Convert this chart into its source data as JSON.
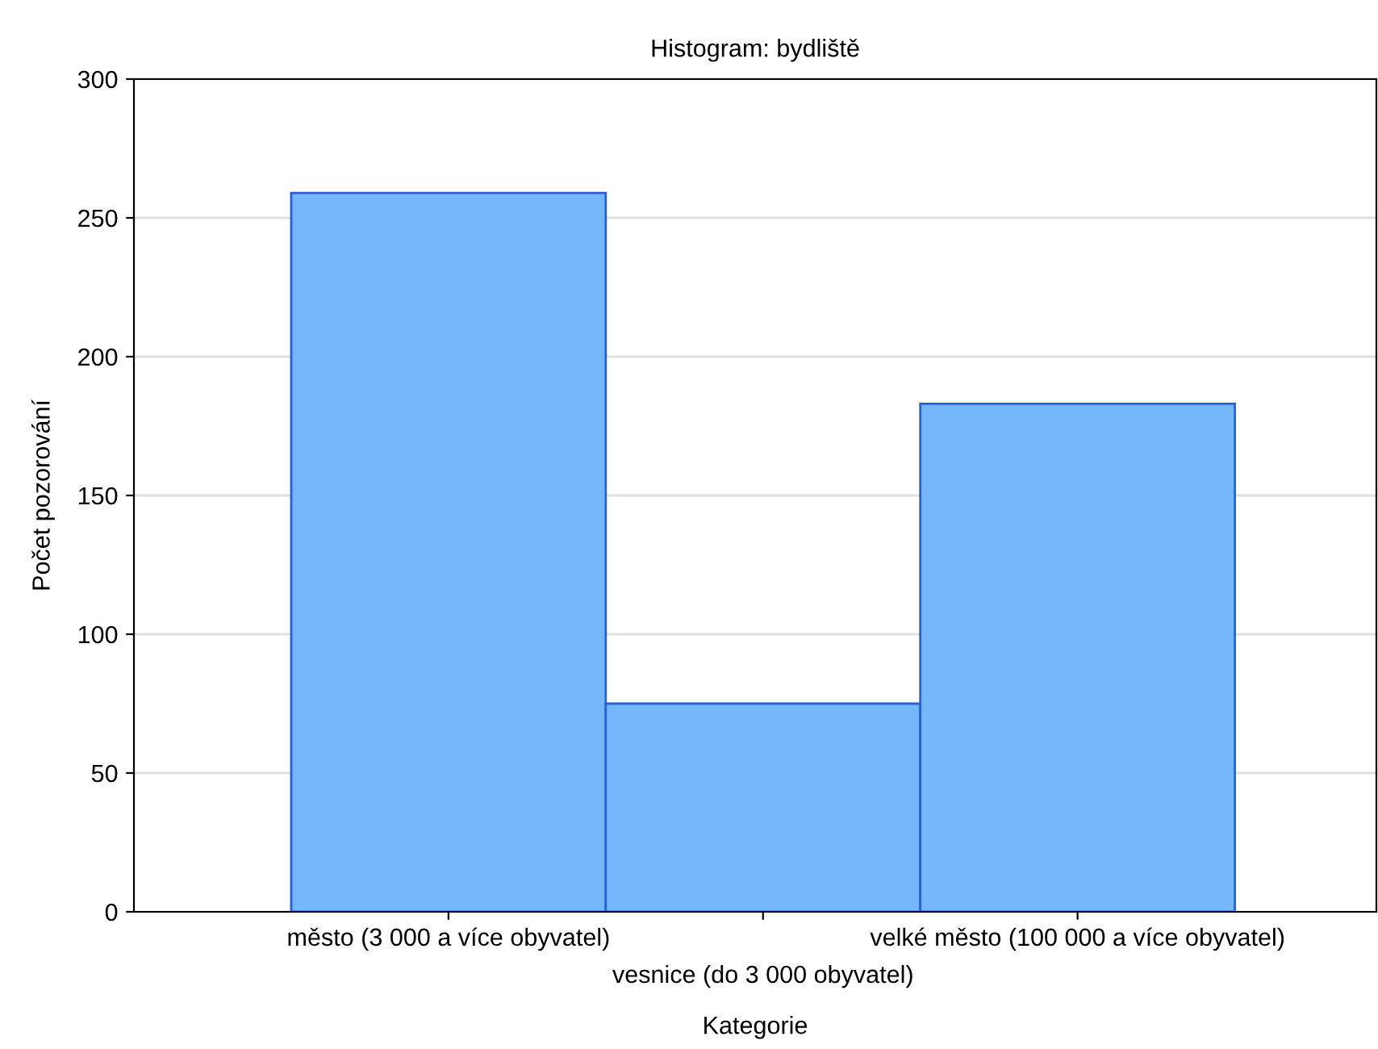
{
  "chart_data": {
    "type": "bar",
    "title": "Histogram: bydliště",
    "xlabel": "Kategorie",
    "ylabel": "Počet pozorování",
    "categories": [
      "město (3 000 a více obyvatel)",
      "vesnice (do 3 000 obyvatel)",
      "velké město (100 000 a více obyvatel)"
    ],
    "values": [
      259,
      75,
      183
    ],
    "color": "#74b6fc",
    "ylim": [
      0,
      300
    ],
    "yticks": [
      0,
      50,
      100,
      150,
      200,
      250,
      300
    ],
    "grid": "y"
  }
}
